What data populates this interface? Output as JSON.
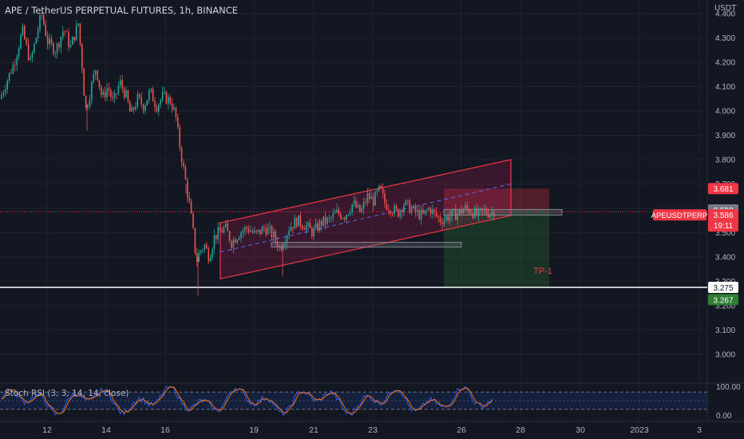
{
  "header": {
    "title": "APE / TetherUS PERPETUAL FUTURES, 1h, BINANCE",
    "unit": "USDT"
  },
  "chart_data": {
    "type": "candlestick",
    "symbol": "APE / TetherUS PERPETUAL FUTURES",
    "interval": "1h",
    "exchange": "BINANCE",
    "ylim": [
      2.95,
      4.43
    ],
    "y_ticks": [
      "3.000",
      "3.100",
      "3.200",
      "3.300",
      "3.400",
      "3.500",
      "3.600",
      "3.700",
      "3.800",
      "3.900",
      "4.000",
      "4.100",
      "4.200",
      "4.300",
      "4.400"
    ],
    "x_ticks": [
      "12",
      "14",
      "16",
      "19",
      "21",
      "23",
      "26",
      "28",
      "30",
      "2023",
      "3"
    ],
    "price_path": [
      [
        0,
        4.05
      ],
      [
        8,
        4.12
      ],
      [
        18,
        4.2
      ],
      [
        28,
        4.33
      ],
      [
        38,
        4.2
      ],
      [
        45,
        4.3
      ],
      [
        52,
        4.4
      ],
      [
        60,
        4.28
      ],
      [
        70,
        4.25
      ],
      [
        80,
        4.34
      ],
      [
        88,
        4.26
      ],
      [
        98,
        4.36
      ],
      [
        103,
        4.18
      ],
      [
        107,
        4.0
      ],
      [
        113,
        4.08
      ],
      [
        120,
        4.18
      ],
      [
        128,
        4.05
      ],
      [
        135,
        4.1
      ],
      [
        142,
        4.03
      ],
      [
        150,
        4.12
      ],
      [
        158,
        4.06
      ],
      [
        164,
        3.98
      ],
      [
        172,
        4.05
      ],
      [
        180,
        4.02
      ],
      [
        188,
        4.08
      ],
      [
        196,
        4.02
      ],
      [
        204,
        4.06
      ],
      [
        214,
        4.04
      ],
      [
        220,
        3.98
      ],
      [
        224,
        3.88
      ],
      [
        228,
        3.8
      ],
      [
        234,
        3.68
      ],
      [
        238,
        3.6
      ],
      [
        242,
        3.5
      ],
      [
        246,
        3.38
      ],
      [
        250,
        3.42
      ],
      [
        256,
        3.45
      ],
      [
        262,
        3.4
      ],
      [
        268,
        3.48
      ],
      [
        274,
        3.5
      ],
      [
        282,
        3.52
      ],
      [
        290,
        3.46
      ],
      [
        300,
        3.5
      ],
      [
        310,
        3.52
      ],
      [
        320,
        3.49
      ],
      [
        332,
        3.52
      ],
      [
        342,
        3.49
      ],
      [
        350,
        3.44
      ],
      [
        356,
        3.47
      ],
      [
        362,
        3.52
      ],
      [
        372,
        3.55
      ],
      [
        382,
        3.53
      ],
      [
        392,
        3.5
      ],
      [
        402,
        3.54
      ],
      [
        412,
        3.55
      ],
      [
        422,
        3.58
      ],
      [
        432,
        3.57
      ],
      [
        442,
        3.62
      ],
      [
        452,
        3.58
      ],
      [
        460,
        3.65
      ],
      [
        468,
        3.63
      ],
      [
        476,
        3.68
      ],
      [
        482,
        3.62
      ],
      [
        490,
        3.6
      ],
      [
        498,
        3.58
      ],
      [
        506,
        3.62
      ],
      [
        514,
        3.6
      ],
      [
        522,
        3.58
      ],
      [
        530,
        3.57
      ],
      [
        538,
        3.6
      ],
      [
        546,
        3.57
      ],
      [
        552,
        3.55
      ],
      [
        558,
        3.56
      ],
      [
        566,
        3.57
      ],
      [
        574,
        3.58
      ],
      [
        582,
        3.6
      ],
      [
        590,
        3.59
      ],
      [
        598,
        3.57
      ],
      [
        606,
        3.59
      ],
      [
        614,
        3.58
      ],
      [
        620,
        3.59
      ]
    ],
    "annotations": {
      "channel": {
        "from": [
          276,
          3.54
        ],
        "to": [
          640,
          3.8
        ],
        "height_price": -0.23
      },
      "midline_dashed": {
        "from": [
          276,
          3.42
        ],
        "to": [
          640,
          3.7
        ]
      },
      "support_zones": [
        {
          "x": [
            340,
            578
          ],
          "price": [
            3.46,
            3.44
          ]
        },
        {
          "x": [
            556,
            704
          ],
          "price": [
            3.595,
            3.572
          ]
        }
      ],
      "short_position": {
        "x": [
          556,
          688
        ],
        "entry": 3.593,
        "stop": 3.681,
        "target": 3.275
      },
      "tp_label": "TP-1",
      "horizontal_line": 3.275
    },
    "price_tags": [
      {
        "label": "3.681",
        "value": 3.681,
        "color": "#f23645"
      },
      {
        "label": "3.593",
        "value": 3.593,
        "color": "#787b86"
      },
      {
        "label": "3.586",
        "value": 3.586,
        "color": "#f23645"
      },
      {
        "label": "3.275",
        "value": 3.275,
        "color": "#ffffff"
      },
      {
        "label": "3.267",
        "value": 3.267,
        "color": "#2e7d32"
      }
    ],
    "symbol_tag": "APEUSDTPERP",
    "countdown": "19:11",
    "stoch_rsi": {
      "label": "Stoch RSI (3, 3, 14, 14, close)",
      "ylim": [
        0,
        100
      ],
      "y_ticks": [
        "100.00",
        "0.00"
      ],
      "bands": [
        20,
        80
      ]
    }
  }
}
